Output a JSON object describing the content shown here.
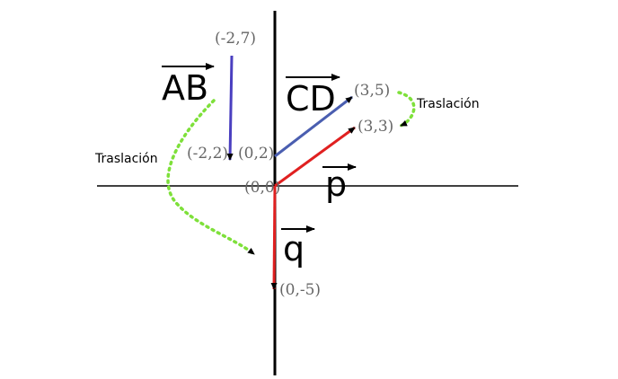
{
  "labels": {
    "vec_ab": "AB",
    "vec_cd": "CD",
    "vec_p": "p",
    "vec_q": "q",
    "traslacion_left": "Traslación",
    "traslacion_right": "Traslación"
  },
  "points": {
    "a": "(-2,7)",
    "b": "(-2,2)",
    "c": "(0,2)",
    "d": "(3,5)",
    "p_end": "(3,3)",
    "origin": "(0,0)",
    "q_end": "(0,-5)"
  },
  "colors": {
    "ab": "#4a3fc0",
    "cd": "#4a5eb0",
    "p": "#e02020",
    "q": "#e02020",
    "traslacion": "#7ee03a",
    "axis": "#000000"
  }
}
